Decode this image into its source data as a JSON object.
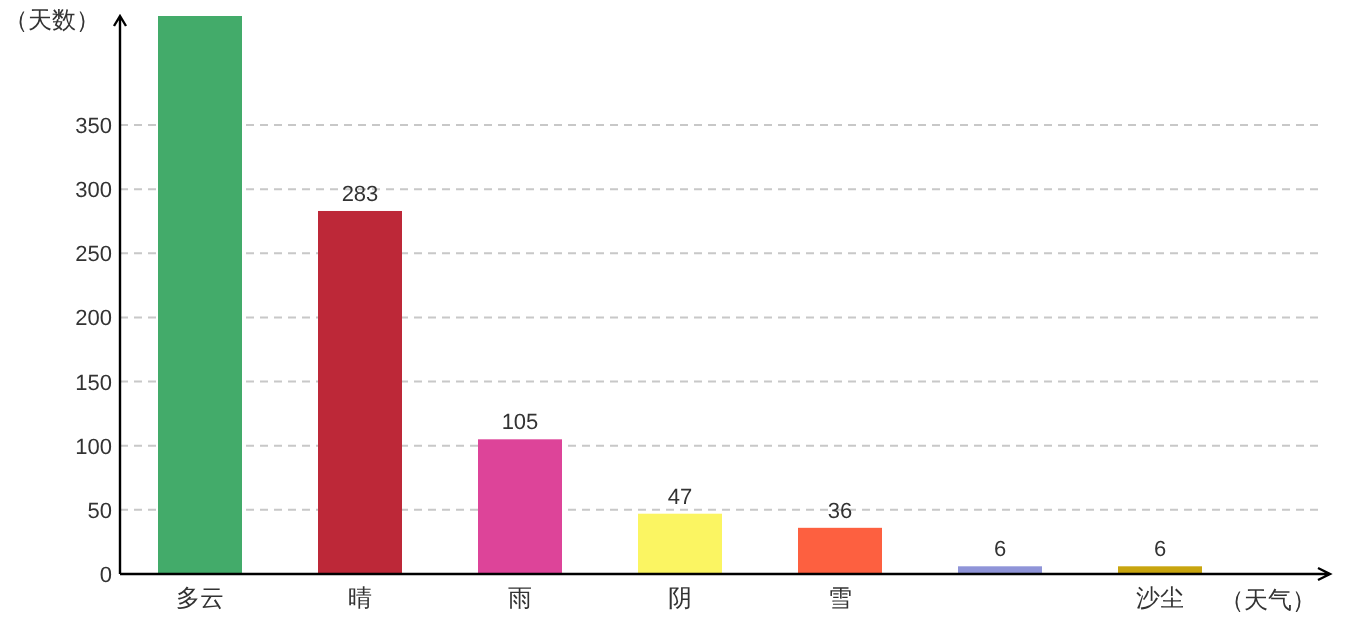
{
  "chart_data": {
    "type": "bar",
    "xlabel": "（天气）",
    "ylabel": "（天数）",
    "categories": [
      "多云",
      "晴",
      "雨",
      "阴",
      "雪",
      null,
      "沙尘"
    ],
    "values": [
      435,
      283,
      105,
      47,
      36,
      6,
      6
    ],
    "colors": [
      "#43ab6a",
      "#bd2838",
      "#dd4499",
      "#fbf562",
      "#fd6040",
      "#8f94d8",
      "#c8a50f"
    ],
    "ylim": [
      0,
      435
    ],
    "yticks": [
      0,
      50,
      100,
      150,
      200,
      250,
      300,
      350
    ],
    "value_labels": [
      null,
      "283",
      "105",
      "47",
      "36",
      "6",
      "6"
    ],
    "grid": "y"
  }
}
